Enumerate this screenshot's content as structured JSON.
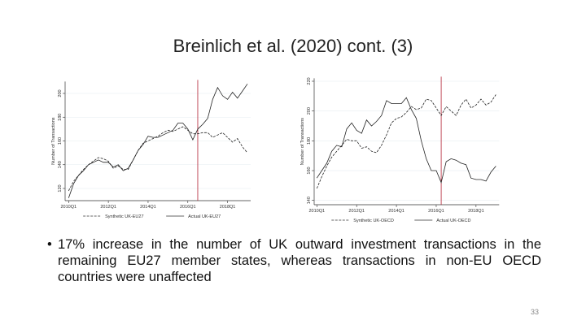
{
  "title": "Breinlich et al. (2020) cont. (3)",
  "bullet": "17% increase in the number of UK outward investment transactions in the remaining EU27 member states, whereas transactions in non-EU OECD countries were unaffected",
  "page_number": "33",
  "chart_data": [
    {
      "type": "line",
      "ylabel": "Number of Transactions",
      "x_ticks": [
        "2010Q1",
        "2012Q1",
        "2014Q1",
        "2016Q1",
        "2018Q1"
      ],
      "x_range": [
        "2010Q1",
        "2019Q1"
      ],
      "y_ticks": [
        120,
        140,
        160,
        180,
        200
      ],
      "ylim": [
        110,
        210
      ],
      "vline_at": "2016Q3",
      "vline_color": "#b22234",
      "grid": true,
      "legend": "bottom",
      "series": [
        {
          "name": "Synthetic UK-EU27",
          "style": "dashed",
          "values": [
            118,
            126,
            131,
            136,
            140,
            143,
            146,
            145,
            143,
            137,
            139,
            136,
            136,
            144,
            152,
            158,
            160,
            162,
            164,
            167,
            169,
            168,
            170,
            172,
            169,
            166,
            166,
            167,
            167,
            163,
            165,
            167,
            163,
            159,
            162,
            155,
            150
          ]
        },
        {
          "name": "Actual UK-EU27",
          "style": "solid",
          "values": [
            112,
            124,
            131,
            135,
            140,
            142,
            144,
            142,
            142,
            138,
            140,
            135,
            137,
            144,
            152,
            157,
            164,
            163,
            163,
            165,
            167,
            169,
            175,
            175,
            170,
            161,
            170,
            174,
            179,
            195,
            205,
            198,
            195,
            201,
            196,
            202,
            208
          ]
        }
      ]
    },
    {
      "type": "line",
      "ylabel": "Number of Transactions",
      "x_ticks": [
        "2010Q1",
        "2012Q1",
        "2014Q1",
        "2016Q1",
        "2018Q1"
      ],
      "x_range": [
        "2010Q1",
        "2019Q1"
      ],
      "y_ticks": [
        140,
        160,
        180,
        200,
        220
      ],
      "ylim": [
        138,
        222
      ],
      "vline_at": "2016Q2",
      "vline_color": "#b22234",
      "grid": true,
      "legend": "bottom",
      "series": [
        {
          "name": "Synthetic UK-OECD",
          "style": "dashed",
          "values": [
            148,
            156,
            163,
            169,
            173,
            177,
            181,
            180,
            180,
            175,
            176,
            173,
            172,
            177,
            184,
            192,
            195,
            196,
            199,
            203,
            201,
            202,
            208,
            207,
            202,
            197,
            203,
            200,
            197,
            204,
            208,
            202,
            204,
            208,
            204,
            206,
            211
          ]
        },
        {
          "name": "Actual UK-OECD",
          "style": "solid",
          "values": [
            155,
            160,
            165,
            173,
            177,
            176,
            188,
            192,
            187,
            185,
            194,
            190,
            193,
            197,
            207,
            205,
            205,
            205,
            209,
            201,
            195,
            180,
            168,
            160,
            160,
            152,
            166,
            168,
            167,
            165,
            164,
            155,
            154,
            154,
            153,
            159,
            163
          ]
        }
      ]
    }
  ]
}
